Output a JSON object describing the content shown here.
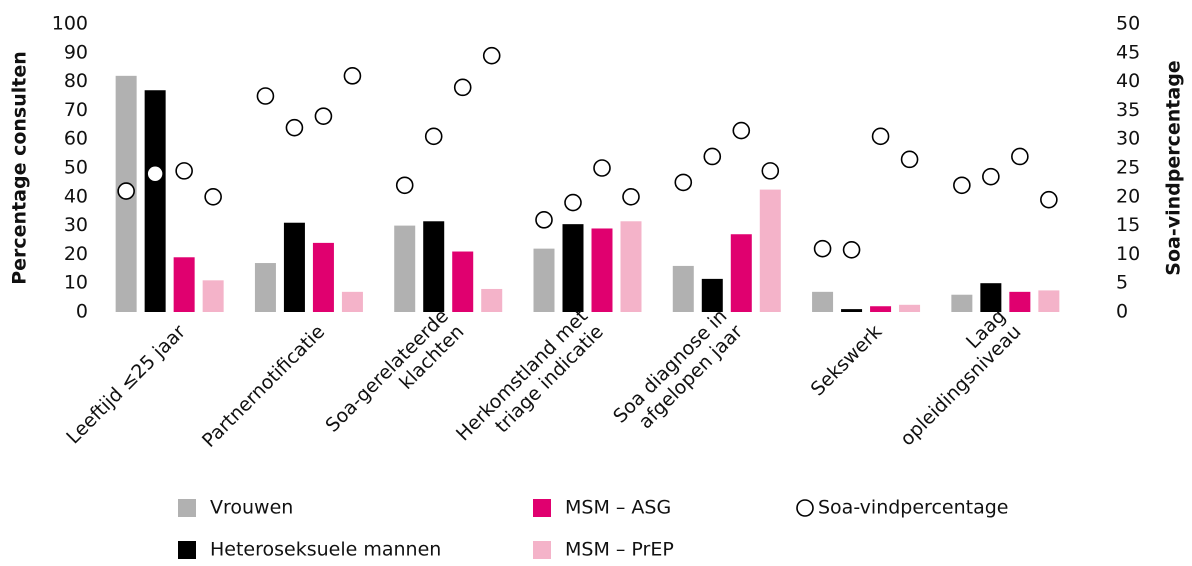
{
  "chart_data": {
    "type": "bar",
    "categories": [
      [
        "Leeftijd ≤25 jaar"
      ],
      [
        "Partnernotificatie"
      ],
      [
        "Soa-gerelateerde",
        "klachten"
      ],
      [
        "Herkomstland met",
        "triage indicatie"
      ],
      [
        "Soa diagnose in",
        "afgelopen jaar"
      ],
      [
        "Sekswerk"
      ],
      [
        "Laag",
        "opleidingsniveau"
      ]
    ],
    "ylabel": "Percentage consulten",
    "y2label": "Soa-vindpercentage",
    "ylim": [
      0,
      100
    ],
    "yticks": [
      0,
      10,
      20,
      30,
      40,
      50,
      60,
      70,
      80,
      90,
      100
    ],
    "y2lim": [
      0,
      50
    ],
    "y2ticks": [
      0,
      5,
      10,
      15,
      20,
      25,
      30,
      35,
      40,
      45,
      50
    ],
    "series": [
      {
        "name": "Vrouwen",
        "color": "#b1b1b1",
        "values": [
          82,
          17,
          30,
          22,
          16,
          7,
          6
        ]
      },
      {
        "name": "Heteroseksuele mannen",
        "color": "#000000",
        "values": [
          77,
          31,
          31.5,
          30.5,
          11.5,
          1,
          10
        ]
      },
      {
        "name": "MSM – ASG",
        "color": "#e0006f",
        "values": [
          19,
          24,
          21,
          29,
          27,
          2,
          7
        ]
      },
      {
        "name": "MSM – PrEP",
        "color": "#f4b3c9",
        "values": [
          11,
          7,
          8,
          31.5,
          42.5,
          2.5,
          7.5
        ]
      },
      {
        "name": "Soa-vindpercentage",
        "type": "scatter",
        "axis": "y2",
        "color": "#ffffff",
        "values": [
          [
            21,
            24,
            24.5,
            20
          ],
          [
            37.5,
            32,
            34,
            41
          ],
          [
            22,
            30.5,
            39,
            44.5
          ],
          [
            16,
            19,
            25,
            20
          ],
          [
            22.5,
            27,
            31.5,
            24.5
          ],
          [
            11,
            10.8,
            30.5,
            26.5
          ],
          [
            22,
            23.5,
            27,
            19.5
          ]
        ]
      }
    ]
  }
}
